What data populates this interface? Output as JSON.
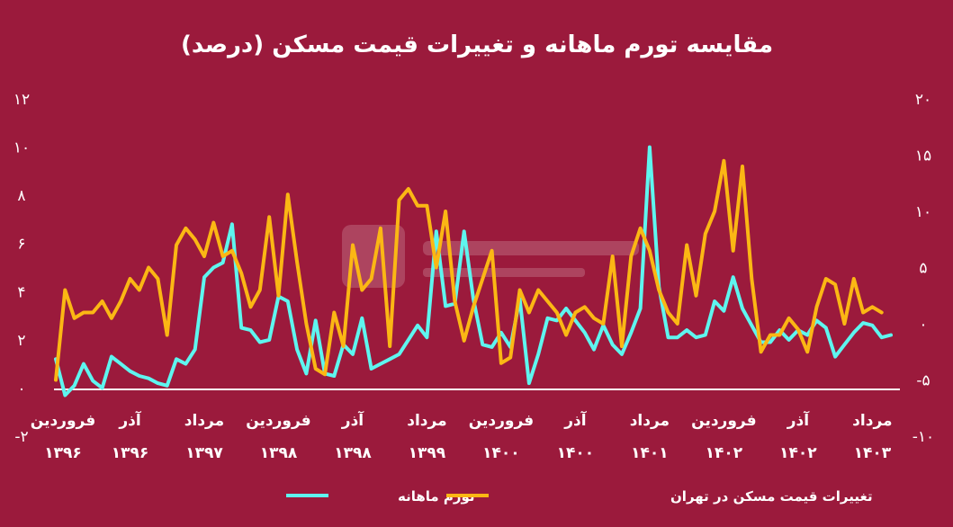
{
  "colors": {
    "background": "#9b1a3c",
    "inflation": "#5ef5ef",
    "housing": "#fbb714",
    "text": "#ffffff"
  },
  "chart_data": {
    "type": "line",
    "title": "مقایسه تورم ماهانه و تغییرات قیمت مسکن (درصد)",
    "left_axis": {
      "ticks": [
        "۱۲",
        "۱۰",
        "۸",
        "۶",
        "۴",
        "۲",
        "۰",
        "-۲"
      ],
      "ylim": [
        -2,
        12
      ]
    },
    "right_axis": {
      "ticks": [
        "۲۰",
        "۱۵",
        "۱۰",
        "۵",
        "۰",
        "-۵",
        "-۱۰"
      ],
      "ylim": [
        -10,
        20
      ]
    },
    "x_month_labels": [
      "فروردین",
      "آذر",
      "مرداد",
      "فروردین",
      "آذر",
      "مرداد",
      "فروردین",
      "آذر",
      "مرداد",
      "فروردین",
      "آذر",
      "مرداد"
    ],
    "x_year_labels": [
      "۱۳۹۶",
      "۱۳۹۶",
      "۱۳۹۷",
      "۱۳۹۸",
      "۱۳۹۸",
      "۱۳۹۹",
      "۱۴۰۰",
      "۱۴۰۰",
      "۱۴۰۱",
      "۱۴۰۲",
      "۱۴۰۲",
      "۱۴۰۳"
    ],
    "x_label_indices": [
      0,
      8,
      16,
      24,
      32,
      40,
      48,
      56,
      64,
      72,
      80,
      88
    ],
    "series": [
      {
        "name": "تورم ماهانه",
        "axis": "left",
        "color": "#5ef5ef",
        "values": [
          1.2,
          -0.3,
          0.1,
          1.0,
          0.3,
          0.0,
          1.3,
          1.0,
          0.7,
          0.5,
          0.4,
          0.2,
          0.1,
          1.2,
          1.0,
          1.6,
          4.6,
          5.0,
          5.2,
          6.8,
          2.5,
          2.4,
          1.9,
          2.0,
          3.8,
          3.6,
          1.6,
          0.6,
          2.8,
          0.6,
          0.5,
          1.8,
          1.4,
          2.9,
          0.8,
          1.0,
          1.2,
          1.4,
          2.0,
          2.6,
          2.1,
          6.5,
          3.4,
          3.5,
          6.5,
          3.7,
          1.8,
          1.7,
          2.3,
          1.7,
          3.7,
          0.2,
          1.4,
          2.9,
          2.8,
          3.3,
          2.8,
          2.3,
          1.6,
          2.6,
          1.8,
          1.4,
          2.3,
          3.3,
          10.0,
          4.2,
          2.1,
          2.1,
          2.4,
          2.1,
          2.2,
          3.6,
          3.2,
          4.6,
          3.3,
          2.6,
          1.9,
          1.9,
          2.4,
          2.0,
          2.4,
          2.2,
          2.8,
          2.5,
          1.3,
          1.8,
          2.3,
          2.7,
          2.6,
          2.1,
          2.2
        ]
      },
      {
        "name": "تغییرات قیمت مسکن در تهران",
        "axis": "right",
        "color": "#fbb714",
        "values": [
          -5.0,
          3.0,
          0.5,
          1.0,
          1.0,
          2.0,
          0.5,
          2.0,
          4.0,
          3.0,
          5.0,
          4.0,
          -1.0,
          7.0,
          8.5,
          7.5,
          6.0,
          9.0,
          6.0,
          6.5,
          4.5,
          1.5,
          3.0,
          9.5,
          2.5,
          11.5,
          5.5,
          0.0,
          -4.0,
          -4.5,
          1.0,
          -2.0,
          7.0,
          3.0,
          4.0,
          8.5,
          -2.0,
          11.0,
          12.0,
          10.5,
          10.5,
          5.0,
          10.0,
          2.0,
          -1.5,
          1.5,
          4.0,
          6.5,
          -3.5,
          -3.0,
          3.0,
          1.0,
          3.0,
          2.0,
          1.0,
          -1.0,
          1.0,
          1.5,
          0.5,
          0.0,
          6.0,
          -2.0,
          6.0,
          8.5,
          6.5,
          3.0,
          1.0,
          0.0,
          7.0,
          2.5,
          8.0,
          10.0,
          14.5,
          6.5,
          14.0,
          4.0,
          -2.5,
          -1.0,
          -1.0,
          0.5,
          -0.5,
          -2.5,
          1.5,
          4.0,
          3.5,
          0.0,
          4.0,
          1.0,
          1.5,
          1.0
        ]
      }
    ],
    "legend_position": "bottom-center",
    "grid": false
  }
}
